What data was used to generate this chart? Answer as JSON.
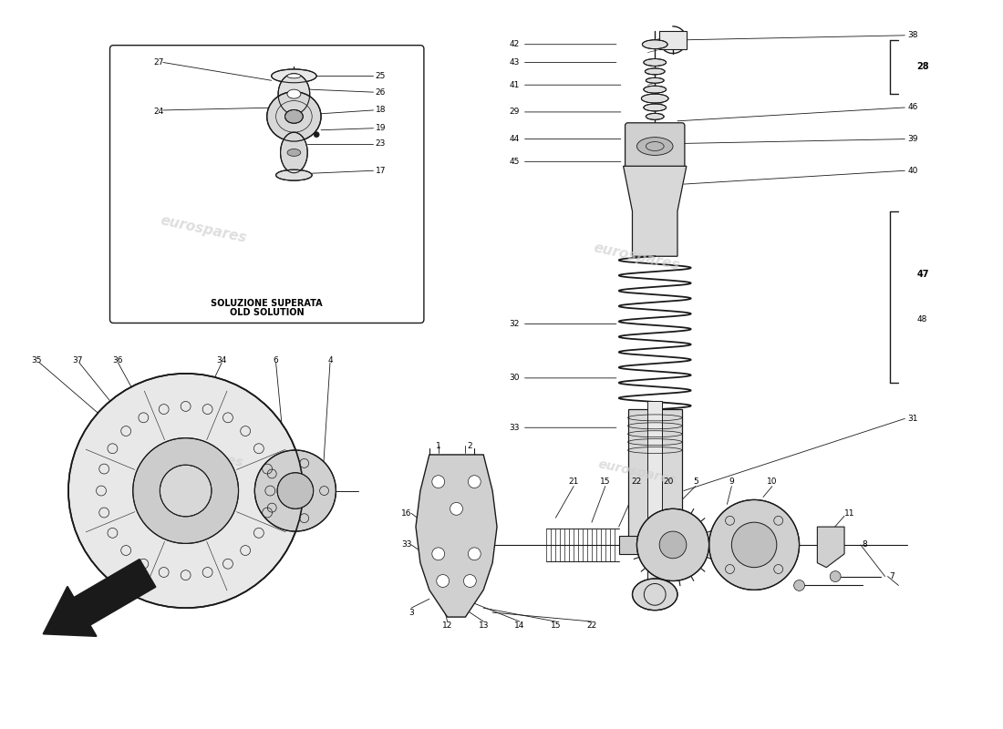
{
  "bg_color": "#ffffff",
  "line_color": "#1a1a1a",
  "text_color": "#000000",
  "watermark_color": "#d0d0d0",
  "watermark_text": "eurospares",
  "box_label_line1": "SOLUZIONE SUPERATA",
  "box_label_line2": "OLD SOLUTION",
  "figsize": [
    11.0,
    8.0
  ],
  "dpi": 100,
  "xlim": [
    0,
    110
  ],
  "ylim": [
    0,
    80
  ]
}
